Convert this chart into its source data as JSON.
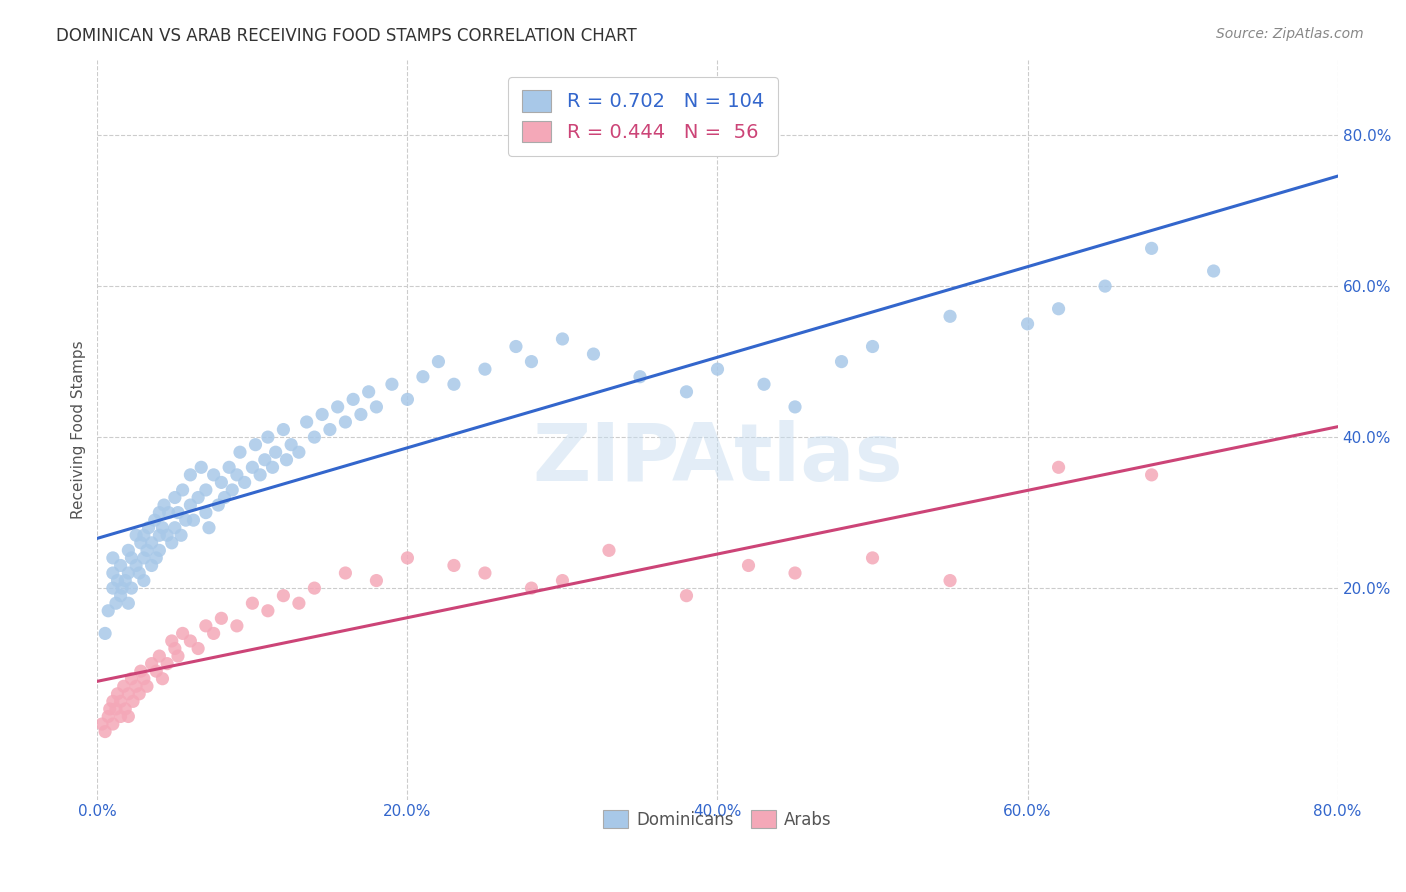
{
  "title": "DOMINICAN VS ARAB RECEIVING FOOD STAMPS CORRELATION CHART",
  "source": "Source: ZipAtlas.com",
  "ylabel": "Receiving Food Stamps",
  "xlim": [
    0.0,
    0.8
  ],
  "ylim": [
    -0.08,
    0.9
  ],
  "xtick_vals": [
    0.0,
    0.2,
    0.4,
    0.6,
    0.8
  ],
  "ytick_vals": [
    0.2,
    0.4,
    0.6,
    0.8
  ],
  "dominican_color": "#a8c8e8",
  "arab_color": "#f4a8b8",
  "dominican_line_color": "#3366cc",
  "arab_line_color": "#cc4477",
  "R_dominican": 0.702,
  "N_dominican": 104,
  "R_arab": 0.444,
  "N_arab": 56,
  "watermark": "ZIPAtlas",
  "background_color": "#ffffff",
  "grid_color": "#cccccc",
  "title_color": "#333333",
  "dominican_x": [
    0.005,
    0.007,
    0.01,
    0.01,
    0.01,
    0.012,
    0.013,
    0.015,
    0.015,
    0.016,
    0.018,
    0.02,
    0.02,
    0.02,
    0.022,
    0.022,
    0.025,
    0.025,
    0.027,
    0.028,
    0.03,
    0.03,
    0.03,
    0.032,
    0.033,
    0.035,
    0.035,
    0.037,
    0.038,
    0.04,
    0.04,
    0.04,
    0.042,
    0.043,
    0.045,
    0.046,
    0.048,
    0.05,
    0.05,
    0.052,
    0.054,
    0.055,
    0.057,
    0.06,
    0.06,
    0.062,
    0.065,
    0.067,
    0.07,
    0.07,
    0.072,
    0.075,
    0.078,
    0.08,
    0.082,
    0.085,
    0.087,
    0.09,
    0.092,
    0.095,
    0.1,
    0.102,
    0.105,
    0.108,
    0.11,
    0.113,
    0.115,
    0.12,
    0.122,
    0.125,
    0.13,
    0.135,
    0.14,
    0.145,
    0.15,
    0.155,
    0.16,
    0.165,
    0.17,
    0.175,
    0.18,
    0.19,
    0.2,
    0.21,
    0.22,
    0.23,
    0.25,
    0.27,
    0.28,
    0.3,
    0.32,
    0.35,
    0.38,
    0.4,
    0.43,
    0.45,
    0.48,
    0.5,
    0.55,
    0.6,
    0.62,
    0.65,
    0.68,
    0.72
  ],
  "dominican_y": [
    0.14,
    0.17,
    0.2,
    0.22,
    0.24,
    0.18,
    0.21,
    0.19,
    0.23,
    0.2,
    0.21,
    0.22,
    0.18,
    0.25,
    0.24,
    0.2,
    0.23,
    0.27,
    0.22,
    0.26,
    0.24,
    0.27,
    0.21,
    0.25,
    0.28,
    0.26,
    0.23,
    0.29,
    0.24,
    0.27,
    0.3,
    0.25,
    0.28,
    0.31,
    0.27,
    0.3,
    0.26,
    0.28,
    0.32,
    0.3,
    0.27,
    0.33,
    0.29,
    0.31,
    0.35,
    0.29,
    0.32,
    0.36,
    0.3,
    0.33,
    0.28,
    0.35,
    0.31,
    0.34,
    0.32,
    0.36,
    0.33,
    0.35,
    0.38,
    0.34,
    0.36,
    0.39,
    0.35,
    0.37,
    0.4,
    0.36,
    0.38,
    0.41,
    0.37,
    0.39,
    0.38,
    0.42,
    0.4,
    0.43,
    0.41,
    0.44,
    0.42,
    0.45,
    0.43,
    0.46,
    0.44,
    0.47,
    0.45,
    0.48,
    0.5,
    0.47,
    0.49,
    0.52,
    0.5,
    0.53,
    0.51,
    0.48,
    0.46,
    0.49,
    0.47,
    0.44,
    0.5,
    0.52,
    0.56,
    0.55,
    0.57,
    0.6,
    0.65,
    0.62
  ],
  "arab_x": [
    0.003,
    0.005,
    0.007,
    0.008,
    0.01,
    0.01,
    0.012,
    0.013,
    0.015,
    0.015,
    0.017,
    0.018,
    0.02,
    0.02,
    0.022,
    0.023,
    0.025,
    0.027,
    0.028,
    0.03,
    0.032,
    0.035,
    0.038,
    0.04,
    0.042,
    0.045,
    0.048,
    0.05,
    0.052,
    0.055,
    0.06,
    0.065,
    0.07,
    0.075,
    0.08,
    0.09,
    0.1,
    0.11,
    0.12,
    0.13,
    0.14,
    0.16,
    0.18,
    0.2,
    0.23,
    0.25,
    0.28,
    0.3,
    0.33,
    0.38,
    0.42,
    0.45,
    0.5,
    0.55,
    0.62,
    0.68
  ],
  "arab_y": [
    0.02,
    0.01,
    0.03,
    0.04,
    0.02,
    0.05,
    0.04,
    0.06,
    0.03,
    0.05,
    0.07,
    0.04,
    0.06,
    0.03,
    0.08,
    0.05,
    0.07,
    0.06,
    0.09,
    0.08,
    0.07,
    0.1,
    0.09,
    0.11,
    0.08,
    0.1,
    0.13,
    0.12,
    0.11,
    0.14,
    0.13,
    0.12,
    0.15,
    0.14,
    0.16,
    0.15,
    0.18,
    0.17,
    0.19,
    0.18,
    0.2,
    0.22,
    0.21,
    0.24,
    0.23,
    0.22,
    0.2,
    0.21,
    0.25,
    0.19,
    0.23,
    0.22,
    0.24,
    0.21,
    0.36,
    0.35
  ]
}
